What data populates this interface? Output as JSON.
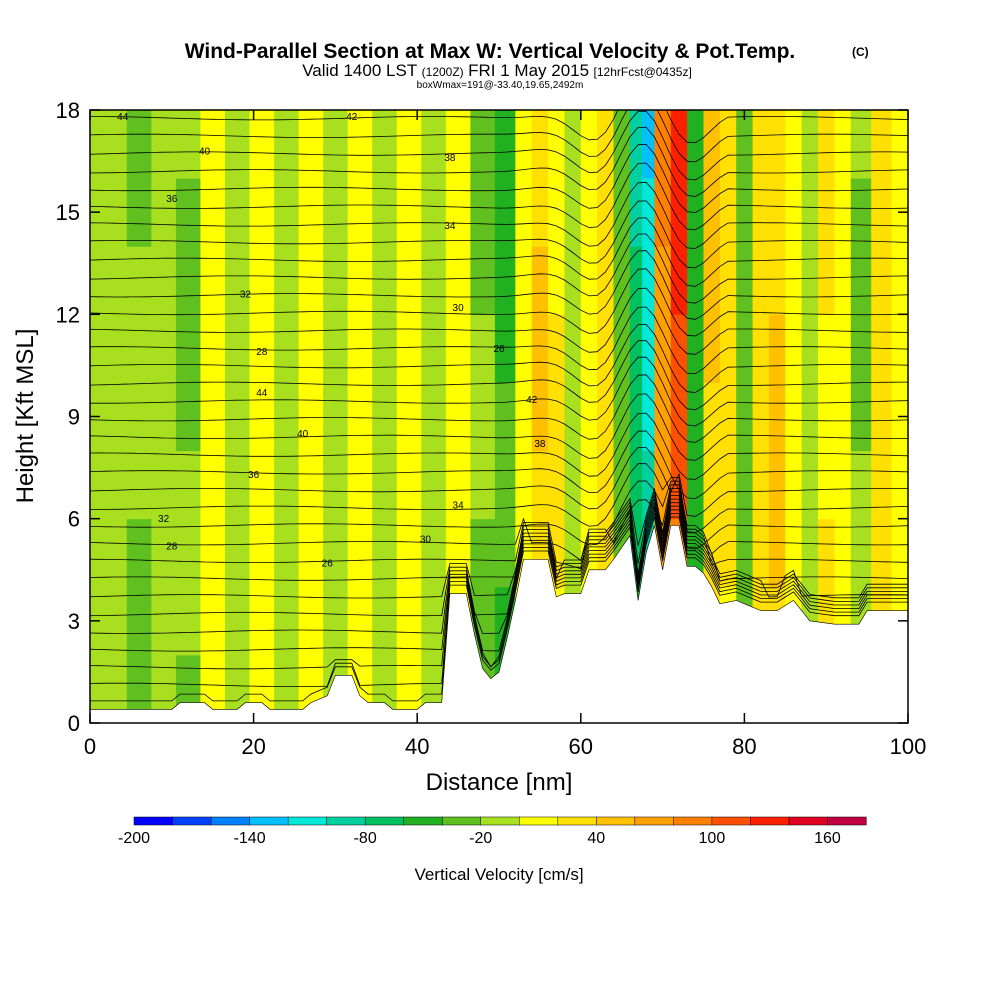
{
  "title_main": "Wind-Parallel Section at Max W: Vertical Velocity & Pot.Temp.",
  "title_mark": "(C)",
  "subtitle": {
    "part1": "Valid 1400 LST",
    "part2": "(1200Z)",
    "part3": "FRI 1 May 2015",
    "part4": "[12hrFcst@0435z]"
  },
  "subtitle2": "boxWmax=191@-33.40,19.65,2492m",
  "chart_data": {
    "type": "heatmap",
    "xlabel": "Distance [nm]",
    "ylabel": "Height [Kft MSL]",
    "xlim": [
      0,
      100
    ],
    "ylim": [
      0,
      18
    ],
    "x_ticks": [
      "0",
      "20",
      "40",
      "60",
      "80",
      "100"
    ],
    "y_ticks": [
      "0",
      "3",
      "6",
      "9",
      "12",
      "15",
      "18"
    ],
    "colorbar": {
      "label": "Vertical Velocity [cm/s]",
      "min": -200,
      "max": 180,
      "step": 20,
      "tick_labels": [
        "-200",
        "-140",
        "-80",
        "-20",
        "40",
        "100",
        "160"
      ],
      "colors": [
        "#0000ff",
        "#0040ff",
        "#0080ff",
        "#00c0ff",
        "#00e8d8",
        "#00d0a0",
        "#00c060",
        "#20b020",
        "#60c020",
        "#a8e020",
        "#ffff00",
        "#ffe000",
        "#ffc000",
        "#ffa000",
        "#ff8000",
        "#ff5000",
        "#ff2000",
        "#e00020",
        "#c00040"
      ]
    },
    "theta_contour_labels": [
      "44",
      "42",
      "40",
      "38",
      "36",
      "34",
      "32",
      "30",
      "28",
      "26"
    ],
    "terrain_kft": [
      [
        0,
        0.4
      ],
      [
        10,
        0.4
      ],
      [
        11,
        0.6
      ],
      [
        14,
        0.6
      ],
      [
        15,
        0.4
      ],
      [
        18,
        0.4
      ],
      [
        19,
        0.6
      ],
      [
        21,
        0.6
      ],
      [
        22,
        0.4
      ],
      [
        26,
        0.4
      ],
      [
        27,
        0.6
      ],
      [
        29,
        0.8
      ],
      [
        30,
        1.4
      ],
      [
        32,
        1.4
      ],
      [
        33,
        0.8
      ],
      [
        34,
        0.6
      ],
      [
        36,
        0.6
      ],
      [
        37,
        0.4
      ],
      [
        40,
        0.4
      ],
      [
        41,
        0.6
      ],
      [
        43,
        0.6
      ],
      [
        44,
        3.8
      ],
      [
        46,
        3.8
      ],
      [
        47,
        2.6
      ],
      [
        48,
        1.6
      ],
      [
        49,
        1.3
      ],
      [
        50,
        1.5
      ],
      [
        51,
        2.5
      ],
      [
        52,
        3.6
      ],
      [
        53,
        4.8
      ],
      [
        56,
        4.8
      ],
      [
        57,
        3.7
      ],
      [
        58,
        3.8
      ],
      [
        60,
        3.8
      ],
      [
        61,
        4.5
      ],
      [
        63,
        4.5
      ],
      [
        64,
        4.8
      ],
      [
        66,
        5.5
      ],
      [
        67,
        3.6
      ],
      [
        68,
        5.0
      ],
      [
        69,
        5.8
      ],
      [
        70,
        4.5
      ],
      [
        71,
        5.8
      ],
      [
        72,
        5.8
      ],
      [
        73,
        4.6
      ],
      [
        74,
        4.6
      ],
      [
        75,
        4.4
      ],
      [
        76,
        4.0
      ],
      [
        77,
        3.5
      ],
      [
        79,
        3.6
      ],
      [
        80,
        3.5
      ],
      [
        82,
        3.3
      ],
      [
        84,
        3.3
      ],
      [
        86,
        3.6
      ],
      [
        88,
        3.0
      ],
      [
        91,
        2.9
      ],
      [
        94,
        2.9
      ],
      [
        95,
        3.3
      ],
      [
        100,
        3.3
      ]
    ],
    "velocity_field_columns": [
      {
        "x": 3,
        "w": -10
      },
      {
        "x": 6,
        "w": -25
      },
      {
        "x": 9,
        "w": -15
      },
      {
        "x": 12,
        "w": -30
      },
      {
        "x": 15,
        "w": 10
      },
      {
        "x": 18,
        "w": -20
      },
      {
        "x": 21,
        "w": 5
      },
      {
        "x": 24,
        "w": -20
      },
      {
        "x": 27,
        "w": 10
      },
      {
        "x": 30,
        "w": -10
      },
      {
        "x": 33,
        "w": 15
      },
      {
        "x": 36,
        "w": -10
      },
      {
        "x": 39,
        "w": 10
      },
      {
        "x": 42,
        "w": -15
      },
      {
        "x": 45,
        "w": 15
      },
      {
        "x": 48,
        "w": -30
      },
      {
        "x": 51,
        "w": -60
      },
      {
        "x": 53,
        "w": 20
      },
      {
        "x": 55,
        "w": 50
      },
      {
        "x": 57,
        "w": 30
      },
      {
        "x": 59,
        "w": -10
      },
      {
        "x": 61,
        "w": 20
      },
      {
        "x": 63,
        "w": 40
      },
      {
        "x": 65,
        "w": -40
      },
      {
        "x": 67,
        "w": -90
      },
      {
        "x": 68,
        "w": -130
      },
      {
        "x": 70,
        "w": 90
      },
      {
        "x": 72,
        "w": 140
      },
      {
        "x": 74,
        "w": -60
      },
      {
        "x": 76,
        "w": 50
      },
      {
        "x": 78,
        "w": 30
      },
      {
        "x": 80,
        "w": -40
      },
      {
        "x": 82,
        "w": 40
      },
      {
        "x": 84,
        "w": 60
      },
      {
        "x": 86,
        "w": 20
      },
      {
        "x": 88,
        "w": -10
      },
      {
        "x": 90,
        "w": 30
      },
      {
        "x": 92,
        "w": 10
      },
      {
        "x": 94,
        "w": -30
      },
      {
        "x": 97,
        "w": 40
      },
      {
        "x": 99,
        "w": 20
      }
    ]
  }
}
